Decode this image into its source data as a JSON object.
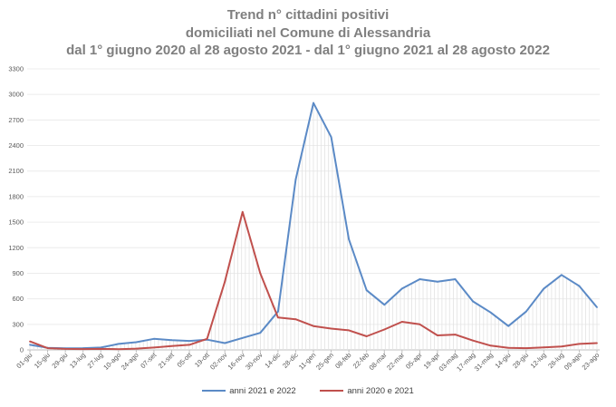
{
  "chart_data": {
    "type": "line",
    "title": "Trend n° cittadini positivi",
    "subtitle": "domiciliati nel Comune di Alessandria",
    "subtitle2": "dal 1° giugno 2020 al 28 agosto 2021 - dal 1° giugno 2021 al 28 agosto 2022",
    "xlabel": "",
    "ylabel": "",
    "ylim": [
      0,
      3300
    ],
    "yticks": [
      0,
      300,
      600,
      900,
      1200,
      1500,
      1800,
      2100,
      2400,
      2700,
      3000,
      3300
    ],
    "grid": true,
    "legend_position": "bottom",
    "categories": [
      "01-giu",
      "15-giu",
      "29-giu",
      "13-lug",
      "27-lug",
      "10-ago",
      "24-ago",
      "07-set",
      "21-set",
      "05-ott",
      "19-ott",
      "02-nov",
      "16-nov",
      "30-nov",
      "14-dic",
      "28-dic",
      "11-gen",
      "25-gen",
      "08-feb",
      "22-feb",
      "08-mar",
      "22-mar",
      "05-apr",
      "19-apr",
      "03-mag",
      "17-mag",
      "31-mag",
      "14-giu",
      "28-giu",
      "12-lug",
      "26-lug",
      "09-ago",
      "23-ago"
    ],
    "series": [
      {
        "name": "anni 2021 e 2022",
        "color": "#5b8ac6",
        "values": [
          60,
          25,
          18,
          20,
          28,
          70,
          90,
          130,
          115,
          105,
          120,
          80,
          140,
          200,
          450,
          2000,
          2900,
          2500,
          1300,
          700,
          530,
          720,
          830,
          800,
          830,
          570,
          440,
          280,
          450,
          720,
          880,
          750,
          500
        ]
      },
      {
        "name": "anni 2020 e 2021",
        "color": "#c0504d",
        "values": [
          100,
          20,
          12,
          10,
          12,
          8,
          15,
          28,
          45,
          60,
          130,
          800,
          1620,
          900,
          380,
          360,
          280,
          250,
          230,
          160,
          240,
          330,
          300,
          170,
          180,
          110,
          50,
          25,
          20,
          30,
          40,
          70,
          80
        ]
      }
    ]
  }
}
